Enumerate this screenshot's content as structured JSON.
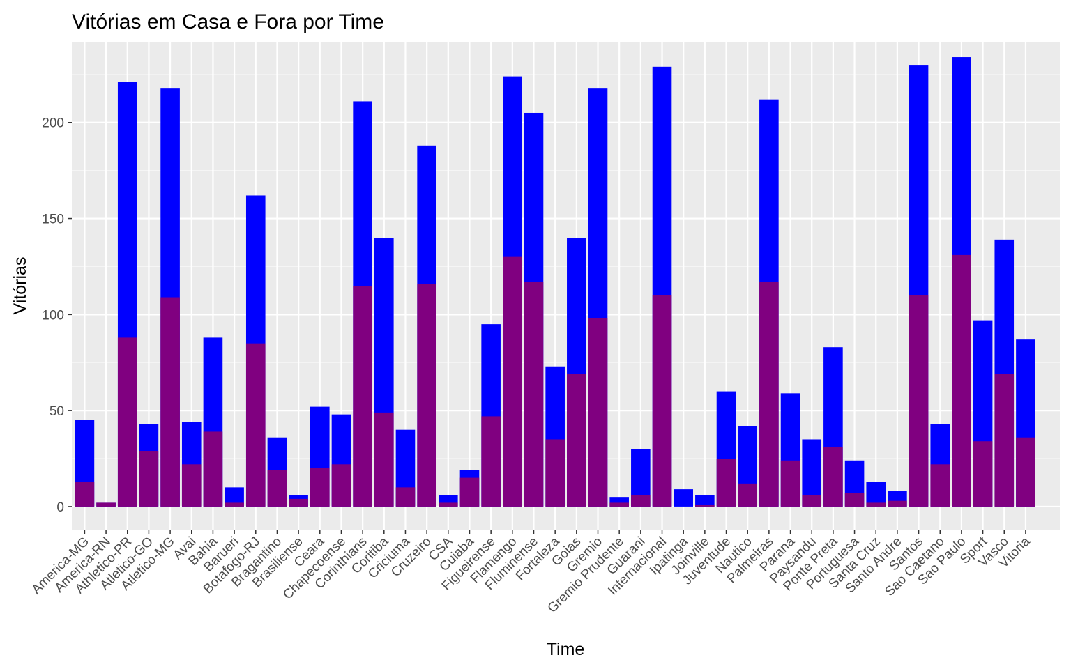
{
  "chart_data": {
    "type": "bar",
    "title": "Vitórias em Casa e Fora por Time",
    "xlabel": "Time",
    "ylabel": "Vitórias",
    "ylim": [
      -12,
      242
    ],
    "yticks": [
      0,
      50,
      100,
      150,
      200
    ],
    "grid": true,
    "legend": "none",
    "categories": [
      "America-MG",
      "America-RN",
      "Athletico-PR",
      "Atletico-GO",
      "Atletico-MG",
      "Avai",
      "Bahia",
      "Barueri",
      "Botafogo-RJ",
      "Bragantino",
      "Brasiliense",
      "Ceara",
      "Chapecoense",
      "Corinthians",
      "Coritiba",
      "Criciuma",
      "Cruzeiro",
      "CSA",
      "Cuiaba",
      "Figueirense",
      "Flamengo",
      "Fluminense",
      "Fortaleza",
      "Goias",
      "Gremio",
      "Gremio Prudente",
      "Guarani",
      "Internacional",
      "Ipatinga",
      "Joinville",
      "Juventude",
      "Nautico",
      "Palmeiras",
      "Parana",
      "Paysandu",
      "Ponte Preta",
      "Portuguesa",
      "Santa Cruz",
      "Santo Andre",
      "Santos",
      "Sao Caetano",
      "Sao Paulo",
      "Sport",
      "Vasco",
      "Vitoria"
    ],
    "series": [
      {
        "color": "#0000ff",
        "values": [
          45,
          2,
          221,
          43,
          218,
          44,
          88,
          10,
          162,
          36,
          6,
          52,
          48,
          211,
          140,
          40,
          188,
          6,
          19,
          95,
          224,
          205,
          73,
          140,
          218,
          5,
          30,
          229,
          9,
          6,
          60,
          42,
          212,
          59,
          35,
          83,
          24,
          13,
          8,
          230,
          43,
          234,
          97,
          139,
          87
        ]
      },
      {
        "color": "#800080",
        "values": [
          13,
          2,
          88,
          29,
          109,
          22,
          39,
          2,
          85,
          19,
          4,
          20,
          22,
          115,
          49,
          10,
          116,
          2,
          15,
          47,
          130,
          117,
          35,
          69,
          98,
          2,
          6,
          110,
          0,
          1,
          25,
          12,
          117,
          24,
          6,
          31,
          7,
          2,
          3,
          110,
          22,
          131,
          34,
          69,
          36
        ]
      }
    ]
  },
  "colors": {
    "panel_bg": "#ebebeb",
    "grid_major": "#ffffff",
    "grid_minor": "#f5f5f5"
  }
}
